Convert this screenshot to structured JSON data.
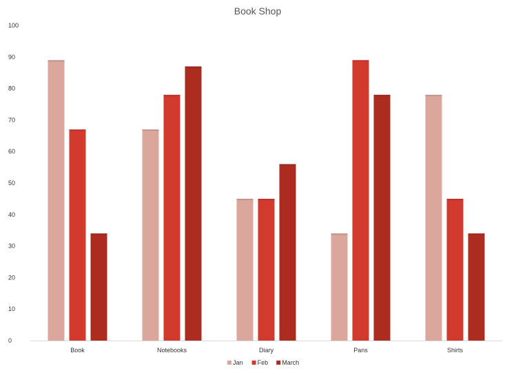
{
  "chart_data": {
    "type": "bar",
    "title": "Book Shop",
    "categories": [
      "Book",
      "Notebooks",
      "Diary",
      "Pans",
      "Shirts"
    ],
    "series": [
      {
        "name": "Jan",
        "color": "#dba69b",
        "values": [
          89,
          67,
          45,
          34,
          78
        ]
      },
      {
        "name": "Feb",
        "color": "#d13a2c",
        "values": [
          67,
          78,
          45,
          89,
          45
        ]
      },
      {
        "name": "March",
        "color": "#ac2d20",
        "values": [
          34,
          87,
          56,
          78,
          34
        ]
      }
    ],
    "ylim": [
      0,
      100
    ],
    "yticks": [
      0,
      10,
      20,
      30,
      40,
      50,
      60,
      70,
      80,
      90,
      100
    ],
    "grid": false,
    "legend": "bottom"
  }
}
